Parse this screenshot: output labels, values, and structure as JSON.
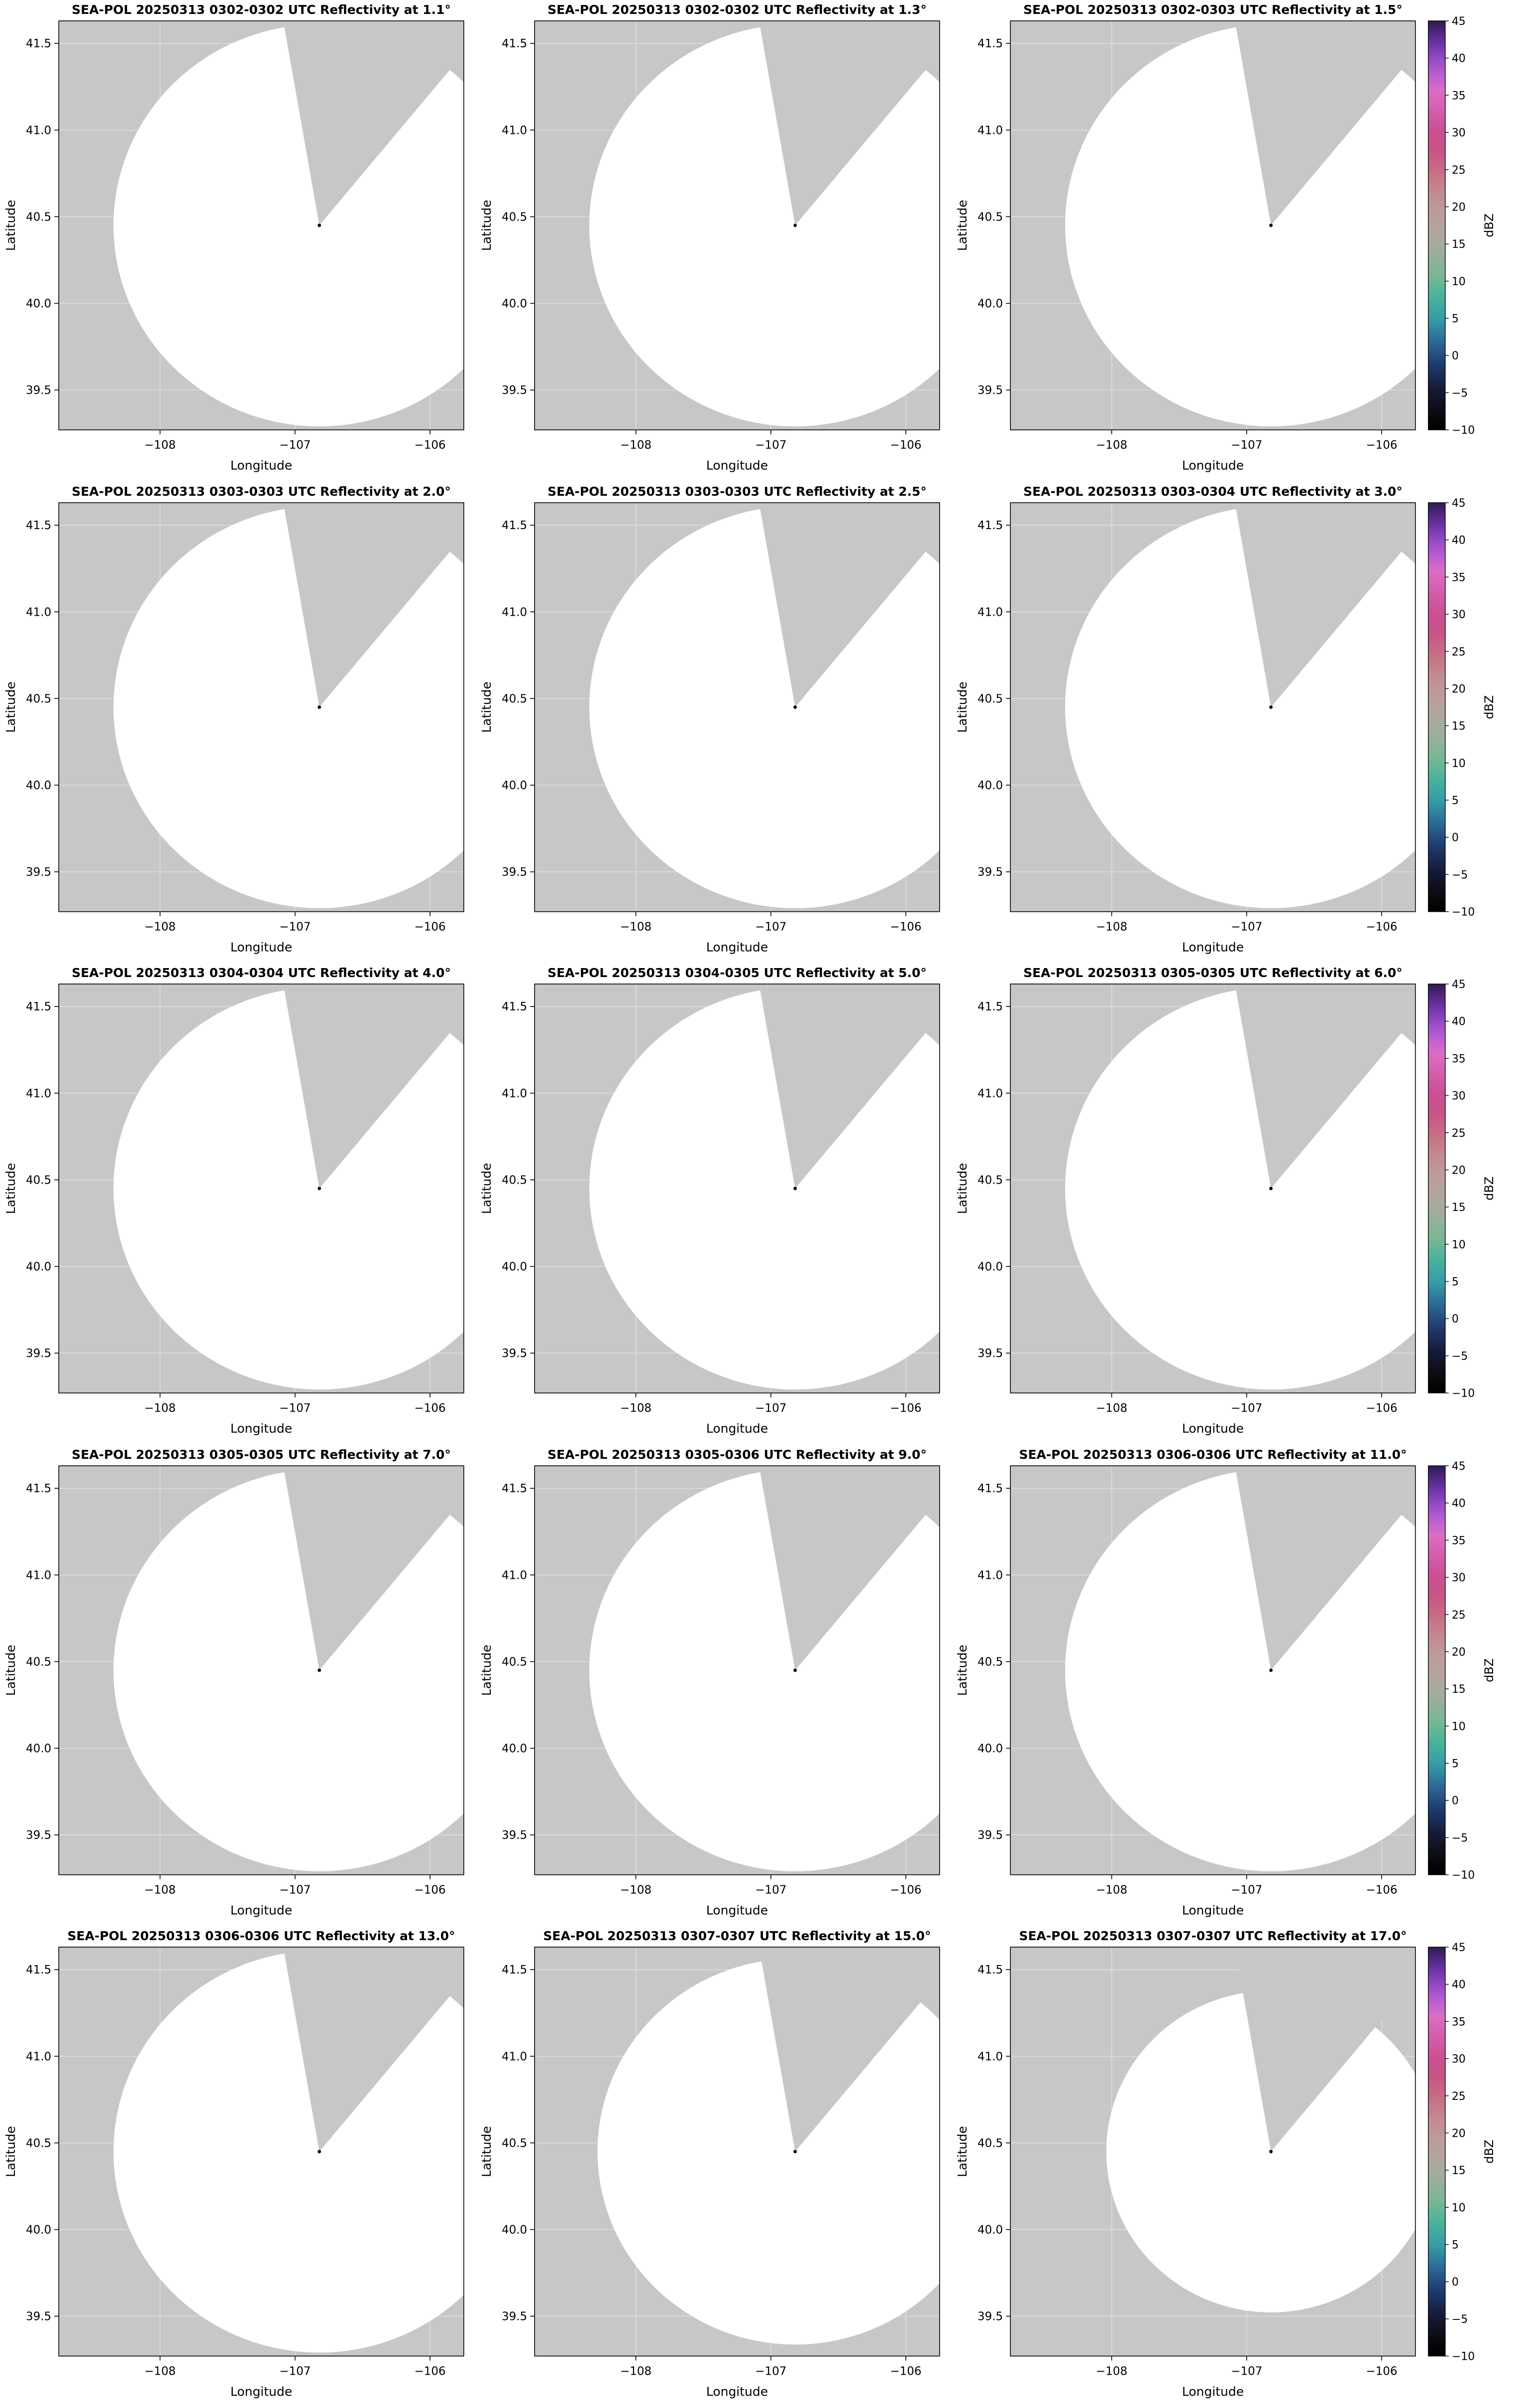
{
  "figure": {
    "background": "#ffffff",
    "panel_bg": "#c7c7c7",
    "coverage_color": "#ffffff",
    "gridline_color": "#ffffff",
    "border_color": "#000000",
    "radar_dot_color": "#000000"
  },
  "chart_data": {
    "type": "heatmap",
    "description": "Grid of 15 SEA-POL radar PPI reflectivity panels (5 rows x 3 columns). Each panel shows the radar coverage circle (white, no echoes above threshold) over a gray background, with a gray blocked sector wedge extending north-northeast from the radar location, and a black dot at the radar site. Right-most panel in each row has a dBZ colorbar.",
    "layout": {
      "rows": 5,
      "cols": 3,
      "colorbar_on_cols": [
        3
      ]
    },
    "shared": {
      "xlabel": "Longitude",
      "ylabel": "Latitude",
      "x_range": [
        -108.75,
        -105.75
      ],
      "y_range": [
        39.27,
        41.63
      ],
      "x_ticks": [
        {
          "value": -108,
          "label": "−108"
        },
        {
          "value": -107,
          "label": "−107"
        },
        {
          "value": -106,
          "label": "−106"
        }
      ],
      "y_ticks": [
        {
          "value": 39.5,
          "label": "39.5"
        },
        {
          "value": 40.0,
          "label": "40.0"
        },
        {
          "value": 40.5,
          "label": "40.5"
        },
        {
          "value": 41.0,
          "label": "41.0"
        },
        {
          "value": 41.5,
          "label": "41.5"
        }
      ],
      "radar_lon": -106.82,
      "radar_lat": 40.45,
      "coverage_radius_lat_deg": 1.16,
      "coverage_radius_lon_deg": 1.525,
      "blocked_sector_screen_deg": [
        -10,
        40
      ],
      "colorbar": {
        "label": "dBZ",
        "min": -10,
        "max": 45,
        "ticks": [
          {
            "value": -10,
            "label": "−10"
          },
          {
            "value": -5,
            "label": "−5"
          },
          {
            "value": 0,
            "label": "0"
          },
          {
            "value": 5,
            "label": "5"
          },
          {
            "value": 10,
            "label": "10"
          },
          {
            "value": 15,
            "label": "15"
          },
          {
            "value": 20,
            "label": "20"
          },
          {
            "value": 25,
            "label": "25"
          },
          {
            "value": 30,
            "label": "30"
          },
          {
            "value": 35,
            "label": "35"
          },
          {
            "value": 40,
            "label": "40"
          },
          {
            "value": 45,
            "label": "45"
          }
        ],
        "stops": [
          {
            "pos": 0.0,
            "color": "#000000"
          },
          {
            "pos": 0.05,
            "color": "#0d0d14"
          },
          {
            "pos": 0.1,
            "color": "#161a38"
          },
          {
            "pos": 0.16,
            "color": "#1f3a6e"
          },
          {
            "pos": 0.21,
            "color": "#2b6394"
          },
          {
            "pos": 0.27,
            "color": "#369ba6"
          },
          {
            "pos": 0.33,
            "color": "#4cb49b"
          },
          {
            "pos": 0.38,
            "color": "#7bb793"
          },
          {
            "pos": 0.44,
            "color": "#9fae9b"
          },
          {
            "pos": 0.49,
            "color": "#b3a4a0"
          },
          {
            "pos": 0.54,
            "color": "#bd9a9a"
          },
          {
            "pos": 0.58,
            "color": "#c38a90"
          },
          {
            "pos": 0.63,
            "color": "#c66f85"
          },
          {
            "pos": 0.68,
            "color": "#c85585"
          },
          {
            "pos": 0.73,
            "color": "#cc4f93"
          },
          {
            "pos": 0.78,
            "color": "#d55cab"
          },
          {
            "pos": 0.83,
            "color": "#da6ec4"
          },
          {
            "pos": 0.87,
            "color": "#b95ecf"
          },
          {
            "pos": 0.91,
            "color": "#9148c4"
          },
          {
            "pos": 0.95,
            "color": "#67309e"
          },
          {
            "pos": 1.0,
            "color": "#2f1a57"
          }
        ]
      }
    },
    "panels": [
      {
        "title": "SEA-POL 20250313 0302-0302 UTC Reflectivity at 1.1°",
        "time": "0302-0302",
        "elevation": 1.1,
        "radius_scale": 1.0,
        "colorbar": false
      },
      {
        "title": "SEA-POL 20250313 0302-0302 UTC Reflectivity at 1.3°",
        "time": "0302-0302",
        "elevation": 1.3,
        "radius_scale": 1.0,
        "colorbar": false
      },
      {
        "title": "SEA-POL 20250313 0302-0303 UTC Reflectivity at 1.5°",
        "time": "0302-0303",
        "elevation": 1.5,
        "radius_scale": 1.0,
        "colorbar": true
      },
      {
        "title": "SEA-POL 20250313 0303-0303 UTC Reflectivity at 2.0°",
        "time": "0303-0303",
        "elevation": 2.0,
        "radius_scale": 1.0,
        "colorbar": false
      },
      {
        "title": "SEA-POL 20250313 0303-0303 UTC Reflectivity at 2.5°",
        "time": "0303-0303",
        "elevation": 2.5,
        "radius_scale": 1.0,
        "colorbar": false
      },
      {
        "title": "SEA-POL 20250313 0303-0304 UTC Reflectivity at 3.0°",
        "time": "0303-0304",
        "elevation": 3.0,
        "radius_scale": 1.0,
        "colorbar": true
      },
      {
        "title": "SEA-POL 20250313 0304-0304 UTC Reflectivity at 4.0°",
        "time": "0304-0304",
        "elevation": 4.0,
        "radius_scale": 1.0,
        "colorbar": false
      },
      {
        "title": "SEA-POL 20250313 0304-0305 UTC Reflectivity at 5.0°",
        "time": "0304-0305",
        "elevation": 5.0,
        "radius_scale": 1.0,
        "colorbar": false
      },
      {
        "title": "SEA-POL 20250313 0305-0305 UTC Reflectivity at 6.0°",
        "time": "0305-0305",
        "elevation": 6.0,
        "radius_scale": 1.0,
        "colorbar": true
      },
      {
        "title": "SEA-POL 20250313 0305-0305 UTC Reflectivity at 7.0°",
        "time": "0305-0305",
        "elevation": 7.0,
        "radius_scale": 1.0,
        "colorbar": false
      },
      {
        "title": "SEA-POL 20250313 0305-0306 UTC Reflectivity at 9.0°",
        "time": "0305-0306",
        "elevation": 9.0,
        "radius_scale": 1.0,
        "colorbar": false
      },
      {
        "title": "SEA-POL 20250313 0306-0306 UTC Reflectivity at 11.0°",
        "time": "0306-0306",
        "elevation": 11.0,
        "radius_scale": 1.0,
        "colorbar": true
      },
      {
        "title": "SEA-POL 20250313 0306-0306 UTC Reflectivity at 13.0°",
        "time": "0306-0306",
        "elevation": 13.0,
        "radius_scale": 1.0,
        "colorbar": false
      },
      {
        "title": "SEA-POL 20250313 0307-0307 UTC Reflectivity at 15.0°",
        "time": "0307-0307",
        "elevation": 15.0,
        "radius_scale": 0.96,
        "colorbar": false
      },
      {
        "title": "SEA-POL 20250313 0307-0307 UTC Reflectivity at 17.0°",
        "time": "0307-0307",
        "elevation": 17.0,
        "radius_scale": 0.8,
        "colorbar": true
      }
    ]
  }
}
